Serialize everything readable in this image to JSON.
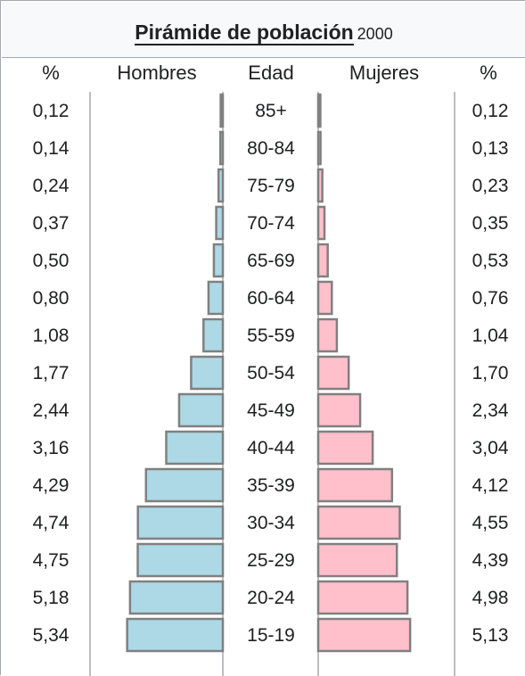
{
  "title": {
    "main": "Pirámide de población",
    "year": "2000"
  },
  "headers": {
    "pct_left": "%",
    "men": "Hombres",
    "age": "Edad",
    "women": "Mujeres",
    "pct_right": "%"
  },
  "colors": {
    "men": "#add8e6",
    "women": "#ffc0cb",
    "bar_border": "#808080",
    "rule": "#a2a9b1"
  },
  "chart_data": {
    "type": "bar",
    "subtype": "population-pyramid",
    "title": "Pirámide de población 2000",
    "categories": [
      "85+",
      "80-84",
      "75-79",
      "70-74",
      "65-69",
      "60-64",
      "55-59",
      "50-54",
      "45-49",
      "40-44",
      "35-39",
      "30-34",
      "25-29",
      "20-24",
      "15-19"
    ],
    "series": [
      {
        "name": "Hombres",
        "values": [
          0.12,
          0.14,
          0.24,
          0.37,
          0.5,
          0.8,
          1.08,
          1.77,
          2.44,
          3.16,
          4.29,
          4.74,
          4.75,
          5.18,
          5.34
        ],
        "labels": [
          "0,12",
          "0,14",
          "0,24",
          "0,37",
          "0,50",
          "0,80",
          "1,08",
          "1,77",
          "2,44",
          "3,16",
          "4,29",
          "4,74",
          "4,75",
          "5,18",
          "5,34"
        ]
      },
      {
        "name": "Mujeres",
        "values": [
          0.12,
          0.13,
          0.23,
          0.35,
          0.53,
          0.76,
          1.04,
          1.7,
          2.34,
          3.04,
          4.12,
          4.55,
          4.39,
          4.98,
          5.13
        ],
        "labels": [
          "0,12",
          "0,13",
          "0,23",
          "0,35",
          "0,53",
          "0,76",
          "1,04",
          "1,70",
          "2,34",
          "3,04",
          "4,12",
          "4,55",
          "4,39",
          "4,98",
          "5,13"
        ]
      }
    ],
    "xlabel": "",
    "ylabel": "Edad",
    "xlim": [
      0,
      5.5
    ],
    "grid": false,
    "legend": "none"
  }
}
